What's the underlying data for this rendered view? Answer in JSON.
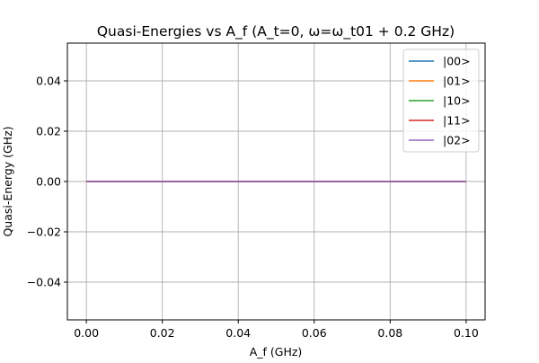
{
  "chart_data": {
    "type": "line",
    "title": "Quasi-Energies vs A_f (A_t=0, ω=ω_t01 + 0.2 GHz)",
    "xlabel": "A_f (GHz)",
    "ylabel": "Quasi-Energy (GHz)",
    "xlim": [
      -0.005,
      0.105
    ],
    "ylim": [
      -0.055,
      0.055
    ],
    "xticks": [
      0.0,
      0.02,
      0.04,
      0.06,
      0.08,
      0.1
    ],
    "xtick_labels": [
      "0.00",
      "0.02",
      "0.04",
      "0.06",
      "0.08",
      "0.10"
    ],
    "yticks": [
      -0.04,
      -0.02,
      0.0,
      0.02,
      0.04
    ],
    "ytick_labels": [
      "−0.04",
      "−0.02",
      "0.00",
      "0.02",
      "0.04"
    ],
    "grid": true,
    "legend_position": "top-right",
    "x": [
      0.0,
      0.1
    ],
    "series": [
      {
        "name": "|00>",
        "color": "#1f77b4",
        "values": [
          0.0,
          0.0
        ]
      },
      {
        "name": "|01>",
        "color": "#ff7f0e",
        "values": [
          0.0,
          0.0
        ]
      },
      {
        "name": "|10>",
        "color": "#2ca02c",
        "values": [
          0.0,
          0.0
        ]
      },
      {
        "name": "|11>",
        "color": "#d62728",
        "values": [
          0.0,
          0.0
        ]
      },
      {
        "name": "|02>",
        "color": "#9467bd",
        "values": [
          0.0,
          0.0
        ]
      }
    ]
  }
}
